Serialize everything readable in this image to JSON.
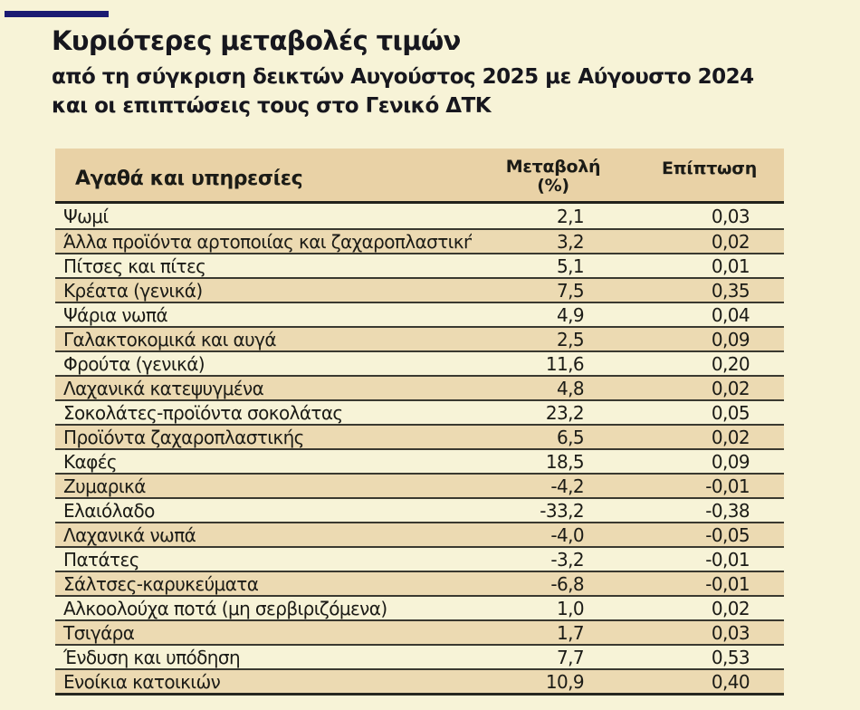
{
  "page": {
    "background_color": "#f7f3d7",
    "accent_bar_color": "#1b1b72",
    "text_color": "#17171e"
  },
  "header": {
    "title": "Κυριότερες μεταβολές τιμών",
    "subtitle_line1": "από τη σύγκριση δεικτών Αυγούστος 2025 με Αύγουστο 2024",
    "subtitle_line2": "και οι επιπτώσεις τους στο Γενικό ΔΤΚ"
  },
  "table": {
    "header_bg_color": "#e9d2a6",
    "alt_row_bg_color": "#ecdab2",
    "separator_color": "#3a3930",
    "col1_header": "Αγαθά και υπηρεσίες",
    "col2_header_line1": "Μεταβολή",
    "col2_header_line2": "(%)",
    "col3_header": "Επίπτωση",
    "rows": [
      {
        "label": "Ψωμί",
        "change": "2,1",
        "impact": "0,03"
      },
      {
        "label": "Άλλα προϊόντα αρτοποιίας και ζαχαροπλαστικής",
        "change": "3,2",
        "impact": "0,02"
      },
      {
        "label": "Πίτσες και πίτες",
        "change": "5,1",
        "impact": "0,01"
      },
      {
        "label": "Κρέατα (γενικά)",
        "change": "7,5",
        "impact": "0,35"
      },
      {
        "label": "Ψάρια νωπά",
        "change": "4,9",
        "impact": "0,04"
      },
      {
        "label": "Γαλακτοκομικά και αυγά",
        "change": "2,5",
        "impact": "0,09"
      },
      {
        "label": "Φρούτα (γενικά)",
        "change": "11,6",
        "impact": "0,20"
      },
      {
        "label": "Λαχανικά κατεψυγμένα",
        "change": "4,8",
        "impact": "0,02"
      },
      {
        "label": "Σοκολάτες-προϊόντα σοκολάτας",
        "change": "23,2",
        "impact": "0,05"
      },
      {
        "label": "Προϊόντα ζαχαροπλαστικής",
        "change": "6,5",
        "impact": "0,02"
      },
      {
        "label": "Καφές",
        "change": "18,5",
        "impact": "0,09"
      },
      {
        "label": "Ζυμαρικά",
        "change": "-4,2",
        "impact": "-0,01"
      },
      {
        "label": "Ελαιόλαδο",
        "change": "-33,2",
        "impact": "-0,38"
      },
      {
        "label": "Λαχανικά νωπά",
        "change": "-4,0",
        "impact": "-0,05"
      },
      {
        "label": "Πατάτες",
        "change": "-3,2",
        "impact": "-0,01"
      },
      {
        "label": "Σάλτσες-καρυκεύματα",
        "change": "-6,8",
        "impact": "-0,01"
      },
      {
        "label": "Αλκοολούχα ποτά (μη σερβιριζόμενα)",
        "change": "1,0",
        "impact": "0,02"
      },
      {
        "label": "Τσιγάρα",
        "change": "1,7",
        "impact": "0,03"
      },
      {
        "label": "Ένδυση και υπόδηση",
        "change": "7,7",
        "impact": "0,53"
      },
      {
        "label": "Ενοίκια κατοικιών",
        "change": "10,9",
        "impact": "0,40"
      }
    ]
  },
  "chart_data": {
    "type": "table",
    "title": "Κυριότερες μεταβολές τιμών",
    "subtitle": "από τη σύγκριση δεικτών Αυγούστος 2025 με Αύγουστο 2024 και οι επιπτώσεις τους στο Γενικό ΔΤΚ",
    "columns": [
      "Αγαθά και υπηρεσίες",
      "Μεταβολή (%)",
      "Επίπτωση"
    ],
    "rows": [
      [
        "Ψωμί",
        2.1,
        0.03
      ],
      [
        "Άλλα προϊόντα αρτοποιίας και ζαχαροπλαστικής",
        3.2,
        0.02
      ],
      [
        "Πίτσες και πίτες",
        5.1,
        0.01
      ],
      [
        "Κρέατα (γενικά)",
        7.5,
        0.35
      ],
      [
        "Ψάρια νωπά",
        4.9,
        0.04
      ],
      [
        "Γαλακτοκομικά και αυγά",
        2.5,
        0.09
      ],
      [
        "Φρούτα (γενικά)",
        11.6,
        0.2
      ],
      [
        "Λαχανικά κατεψυγμένα",
        4.8,
        0.02
      ],
      [
        "Σοκολάτες-προϊόντα σοκολάτας",
        23.2,
        0.05
      ],
      [
        "Προϊόντα ζαχαροπλαστικής",
        6.5,
        0.02
      ],
      [
        "Καφές",
        18.5,
        0.09
      ],
      [
        "Ζυμαρικά",
        -4.2,
        -0.01
      ],
      [
        "Ελαιόλαδο",
        -33.2,
        -0.38
      ],
      [
        "Λαχανικά νωπά",
        -4.0,
        -0.05
      ],
      [
        "Πατάτες",
        -3.2,
        -0.01
      ],
      [
        "Σάλτσες-καρυκεύματα",
        -6.8,
        -0.01
      ],
      [
        "Αλκοολούχα ποτά (μη σερβιριζόμενα)",
        1.0,
        0.02
      ],
      [
        "Τσιγάρα",
        1.7,
        0.03
      ],
      [
        "Ένδυση και υπόδηση",
        7.7,
        0.53
      ],
      [
        "Ενοίκια κατοικιών",
        10.9,
        0.4
      ]
    ]
  }
}
